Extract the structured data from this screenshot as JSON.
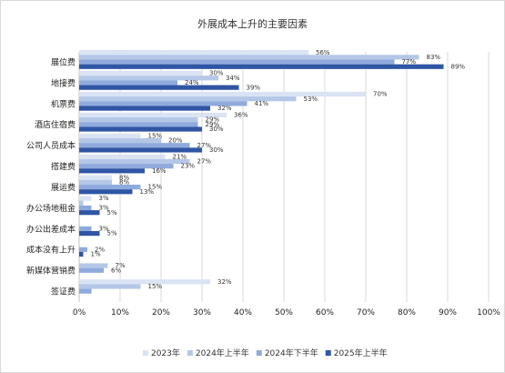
{
  "chart_data": {
    "type": "bar",
    "orientation": "horizontal",
    "title": "外展成本上升的主要因素",
    "categories": [
      "展位费",
      "地接费",
      "机票费",
      "酒店住宿费",
      "公司人员成本",
      "搭建费",
      "展运费",
      "办公场地租金",
      "办公出差成本",
      "成本没有上升",
      "新媒体营销费",
      "签证费"
    ],
    "series": [
      {
        "name": "2023年",
        "color": "#dae3f3",
        "values": [
          56,
          30,
          70,
          36,
          15,
          21,
          8,
          3,
          null,
          null,
          null,
          32
        ],
        "labels": [
          "56%",
          "30%",
          "70%",
          "36%",
          "15%",
          "21%",
          "8%",
          "3%",
          "",
          "",
          "",
          "32%"
        ]
      },
      {
        "name": "2024年上半年",
        "color": "#b4c7e7",
        "values": [
          83,
          34,
          53,
          29,
          20,
          27,
          8,
          1,
          null,
          null,
          7,
          15
        ],
        "labels": [
          "83%",
          "34%",
          "53%",
          "29%",
          "20%",
          "27%",
          "8%",
          "",
          "",
          "",
          "7%",
          "15%"
        ]
      },
      {
        "name": "2024年下半年",
        "color": "#8faadc",
        "values": [
          77,
          24,
          41,
          29,
          27,
          23,
          15,
          3,
          3,
          2,
          6,
          3
        ],
        "labels": [
          "77%",
          "24%",
          "41%",
          "29%",
          "27%",
          "23%",
          "15%",
          "3%",
          "3%",
          "2%",
          "6%",
          ""
        ]
      },
      {
        "name": "2025年上半年",
        "color": "#2f55a4",
        "values": [
          89,
          39,
          32,
          30,
          30,
          16,
          13,
          5,
          5,
          1,
          null,
          null
        ],
        "labels": [
          "89%",
          "39%",
          "32%",
          "30%",
          "30%",
          "16%",
          "13%",
          "5%",
          "5%",
          "1%",
          "",
          ""
        ]
      }
    ],
    "xlim": [
      0,
      100
    ],
    "xticks": [
      "0%",
      "10%",
      "20%",
      "30%",
      "40%",
      "50%",
      "60%",
      "70%",
      "80%",
      "90%",
      "100%"
    ],
    "grid": true,
    "legend_position": "bottom"
  }
}
